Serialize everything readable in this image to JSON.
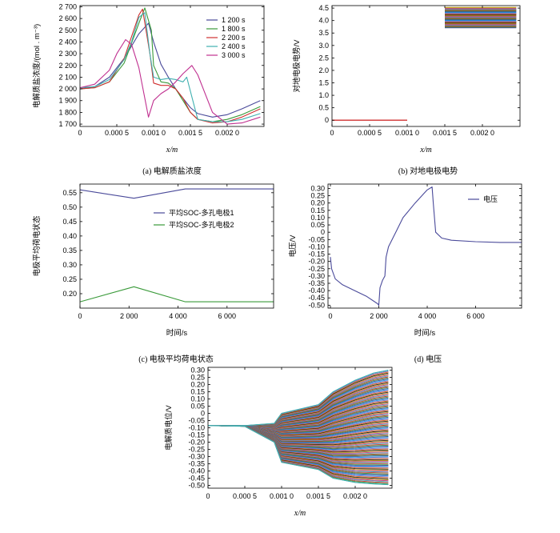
{
  "chart_data": [
    {
      "panel": "a",
      "type": "line",
      "caption": "(a) 电解质盐浓度",
      "xlabel": "x/m",
      "ylabel": "电解质盐浓度/(mol . m⁻³)",
      "xlim": [
        0,
        0.0025
      ],
      "ylim": [
        1680,
        2710
      ],
      "xticks": [
        0,
        0.0005,
        0.001,
        0.0015,
        0.002
      ],
      "xtick_labels": [
        "0",
        "0.000 5",
        "0.001 0",
        "0.001 5",
        "0.002 0"
      ],
      "yticks": [
        1700,
        1800,
        1900,
        2000,
        2100,
        2200,
        2300,
        2400,
        2500,
        2600,
        2700
      ],
      "ytick_labels": [
        "1 700",
        "1 800",
        "1 900",
        "2 000",
        "2 100",
        "2 200",
        "2 300",
        "2 400",
        "2 500",
        "2 600",
        "2 700"
      ],
      "legend_position": "top-right",
      "series": [
        {
          "name": "1 200 s",
          "color": "#4a4a9a",
          "x": [
            0,
            0.0002,
            0.0004,
            0.0006,
            0.0008,
            0.00093,
            0.001,
            0.0011,
            0.0012,
            0.0013,
            0.0014,
            0.0015,
            0.0016,
            0.0018,
            0.002,
            0.0022,
            0.00245
          ],
          "y": [
            2000,
            2020,
            2100,
            2260,
            2470,
            2560,
            2400,
            2210,
            2100,
            2000,
            1920,
            1840,
            1790,
            1760,
            1780,
            1830,
            1900
          ]
        },
        {
          "name": "1 800 s",
          "color": "#3a9a3a",
          "x": [
            0,
            0.0002,
            0.0004,
            0.0006,
            0.0008,
            0.00088,
            0.00097,
            0.001,
            0.0011,
            0.0012,
            0.0013,
            0.0014,
            0.0015,
            0.0016,
            0.0018,
            0.002,
            0.0022,
            0.00245
          ],
          "y": [
            2000,
            2010,
            2060,
            2220,
            2560,
            2690,
            2500,
            2200,
            2060,
            2050,
            2000,
            1900,
            1800,
            1740,
            1720,
            1740,
            1780,
            1850
          ]
        },
        {
          "name": "2 200 s",
          "color": "#d03030",
          "x": [
            0,
            0.0002,
            0.0004,
            0.0006,
            0.0008,
            0.00085,
            0.00095,
            0.001,
            0.0011,
            0.0012,
            0.0013,
            0.0014,
            0.0015,
            0.0016,
            0.0018,
            0.002,
            0.0022,
            0.00245
          ],
          "y": [
            2000,
            2010,
            2060,
            2260,
            2630,
            2680,
            2300,
            2050,
            2030,
            2030,
            2000,
            1920,
            1800,
            1740,
            1710,
            1720,
            1760,
            1830
          ]
        },
        {
          "name": "2 400 s",
          "color": "#40b0b0",
          "x": [
            0,
            0.0002,
            0.0004,
            0.0006,
            0.0007,
            0.0008,
            0.00088,
            0.00095,
            0.001,
            0.0011,
            0.0012,
            0.0013,
            0.0014,
            0.00145,
            0.0015,
            0.0016,
            0.0018,
            0.002,
            0.0022,
            0.00245
          ],
          "y": [
            2010,
            2020,
            2080,
            2250,
            2400,
            2610,
            2650,
            2300,
            2100,
            2080,
            2090,
            2080,
            2060,
            2100,
            1980,
            1740,
            1720,
            1720,
            1740,
            1790
          ]
        },
        {
          "name": "3 000 s",
          "color": "#c03090",
          "x": [
            0,
            0.0002,
            0.0004,
            0.0005,
            0.00062,
            0.0007,
            0.0008,
            0.00093,
            0.001,
            0.0011,
            0.0012,
            0.0013,
            0.0014,
            0.00152,
            0.0016,
            0.0018,
            0.002,
            0.0022,
            0.00245
          ],
          "y": [
            2010,
            2040,
            2160,
            2300,
            2420,
            2380,
            2180,
            1760,
            1900,
            1960,
            2000,
            2060,
            2130,
            2200,
            2120,
            1800,
            1700,
            1710,
            1760
          ]
        }
      ]
    },
    {
      "panel": "b",
      "type": "line",
      "caption": "(b) 对地电极电势",
      "xlabel": "x/m",
      "ylabel": "对地电极电势/V",
      "xlim": [
        0,
        0.0025
      ],
      "ylim": [
        -0.25,
        4.6
      ],
      "xticks": [
        0,
        0.0005,
        0.001,
        0.0015,
        0.002
      ],
      "xtick_labels": [
        "0",
        "0.000 5",
        "0.001 0",
        "0.001 5",
        "0.002 0"
      ],
      "yticks": [
        0,
        0.5,
        1.0,
        1.5,
        2.0,
        2.5,
        3.0,
        3.5,
        4.0,
        4.5
      ],
      "ytick_labels": [
        "0",
        "0.5",
        "1.0",
        "1.5",
        "2.0",
        "2.5",
        "3.0",
        "3.5",
        "4.0",
        "4.5"
      ],
      "negative_electrode": {
        "x": [
          0,
          0.001
        ],
        "value": 0.0
      },
      "positive_electrode_band": {
        "x": [
          0.0015,
          0.00245
        ],
        "range": [
          3.72,
          4.52
        ]
      }
    },
    {
      "panel": "c",
      "type": "line",
      "caption": "(c) 电极平均荷电状态",
      "xlabel": "时间/s",
      "ylabel": "电极平均荷电状态",
      "xlim": [
        0,
        7900
      ],
      "ylim": [
        0.15,
        0.58
      ],
      "xticks": [
        0,
        2000,
        4000,
        6000
      ],
      "xtick_labels": [
        "0",
        "2 000",
        "4 000",
        "6 000"
      ],
      "yticks": [
        0.2,
        0.25,
        0.3,
        0.35,
        0.4,
        0.45,
        0.5,
        0.55
      ],
      "ytick_labels": [
        "0.20",
        "0.25",
        "0.30",
        "0.35",
        "0.40",
        "0.45",
        "0.50",
        "0.55"
      ],
      "legend_position": "center-right",
      "series": [
        {
          "name": "平均SOC-多孔电极1",
          "color": "#4a4a9a",
          "x": [
            0,
            2200,
            4300,
            7900
          ],
          "y": [
            0.56,
            0.531,
            0.563,
            0.563
          ]
        },
        {
          "name": "平均SOC-多孔电极2",
          "color": "#3a9a3a",
          "x": [
            0,
            2200,
            4300,
            7900
          ],
          "y": [
            0.172,
            0.224,
            0.172,
            0.172
          ]
        }
      ]
    },
    {
      "panel": "d",
      "type": "line",
      "caption": "(d) 电压",
      "xlabel": "时间/s",
      "ylabel": "电压/V",
      "xlim": [
        -100,
        7900
      ],
      "ylim": [
        -0.52,
        0.33
      ],
      "xticks": [
        0,
        2000,
        4000,
        6000
      ],
      "xtick_labels": [
        "0",
        "2 000",
        "4 000",
        "6 000"
      ],
      "yticks": [
        -0.5,
        -0.45,
        -0.4,
        -0.35,
        -0.3,
        -0.25,
        -0.2,
        -0.15,
        -0.1,
        -0.05,
        0,
        0.05,
        0.1,
        0.15,
        0.2,
        0.25,
        0.3
      ],
      "ytick_labels": [
        "-0.50",
        "-0.45",
        "-0.40",
        "-0.35",
        "-0.30",
        "-0.25",
        "-0.20",
        "-0.15",
        "-0.10",
        "-0.05",
        "0",
        "0.05",
        "0.10",
        "0.15",
        "0.20",
        "0.25",
        "0.30"
      ],
      "legend_position": "top-right",
      "series": [
        {
          "name": "电压",
          "color": "#4a4a9a",
          "x": [
            0,
            50,
            200,
            500,
            1000,
            1500,
            1950,
            2000,
            2050,
            2150,
            2250,
            2300,
            2400,
            2700,
            3000,
            3500,
            4000,
            4200,
            4250,
            4350,
            4600,
            5000,
            6000,
            7000,
            7900
          ],
          "y": [
            -0.17,
            -0.25,
            -0.32,
            -0.36,
            -0.4,
            -0.44,
            -0.49,
            -0.5,
            -0.38,
            -0.33,
            -0.3,
            -0.17,
            -0.1,
            0.0,
            0.1,
            0.2,
            0.29,
            0.31,
            0.2,
            0.0,
            -0.04,
            -0.055,
            -0.065,
            -0.07,
            -0.07
          ]
        }
      ]
    },
    {
      "panel": "e",
      "type": "line",
      "caption": "(e) 电解质电位",
      "xlabel": "x/m",
      "ylabel": "电解质电位/V",
      "xlim": [
        0,
        0.0025
      ],
      "ylim": [
        -0.52,
        0.32
      ],
      "xticks": [
        0,
        0.0005,
        0.001,
        0.0015,
        0.002
      ],
      "xtick_labels": [
        "0",
        "0.000 5",
        "0.001 0",
        "0.001 5",
        "0.002 0"
      ],
      "yticks": [
        -0.5,
        -0.45,
        -0.4,
        -0.35,
        -0.3,
        -0.25,
        -0.2,
        -0.15,
        -0.1,
        -0.05,
        0,
        0.05,
        0.1,
        0.15,
        0.2,
        0.25,
        0.3
      ],
      "ytick_labels": [
        "-0.50",
        "-0.45",
        "-0.40",
        "-0.35",
        "-0.30",
        "-0.25",
        "-0.20",
        "-0.15",
        "-0.10",
        "-0.05",
        "0",
        "0.05",
        "0.10",
        "0.15",
        "0.20",
        "0.25",
        "0.30"
      ],
      "envelope": {
        "x": [
          0,
          0.0005,
          0.0009,
          0.001,
          0.0015,
          0.0017,
          0.002,
          0.00225,
          0.00245
        ],
        "upper": [
          -0.085,
          -0.085,
          -0.07,
          0.0,
          0.06,
          0.15,
          0.23,
          0.28,
          0.3
        ],
        "lower": [
          -0.085,
          -0.09,
          -0.2,
          -0.34,
          -0.39,
          -0.45,
          -0.48,
          -0.49,
          -0.495
        ],
        "start": -0.085
      }
    }
  ],
  "palette": [
    "#4a4a9a",
    "#3a9a3a",
    "#d03030",
    "#40b0b0",
    "#c03090",
    "#c0a020",
    "#202020",
    "#e07020",
    "#8060c0",
    "#20a0e0"
  ]
}
